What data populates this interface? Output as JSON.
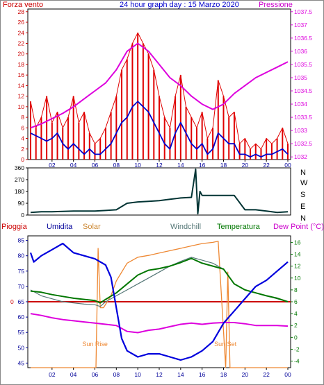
{
  "header": {
    "left_label": "Forza vento",
    "title": "24 hour graph day : 15 Marzo 2020",
    "right_label": "Pressione"
  },
  "lower_header": {
    "pioggia": "Pioggia",
    "umidita": "Umidita",
    "solar": "Solar",
    "windchill": "Windchill",
    "temperatura": "Temperatura",
    "dewpoint": "Dew Point (°C)"
  },
  "annotations": {
    "sunrise": "Sun Rise",
    "sunset": "Sun Set"
  },
  "colors": {
    "wind": "#e00000",
    "gust": "#e00000",
    "avgwind": "#0000cc",
    "pressure": "#dd00dd",
    "direction": "#003333",
    "humidity": "#0000dd",
    "solar": "#ee8833",
    "windchill": "#557777",
    "temperature": "#007700",
    "dewpoint": "#dd00dd",
    "rain": "#cc0000",
    "axis_blue": "#000099",
    "axis_red": "#cc0000",
    "axis_green": "#007700"
  },
  "chart_data": [
    {
      "type": "line",
      "title": "24 hour graph day : 15 Marzo 2020",
      "x_ticks": [
        "02",
        "04",
        "06",
        "08",
        "10",
        "12",
        "14",
        "16",
        "18",
        "20",
        "22",
        "00"
      ],
      "y_left": {
        "label": "Forza vento",
        "ticks": [
          "0",
          "2",
          "4",
          "6",
          "8",
          "10",
          "12",
          "14",
          "16",
          "18",
          "20",
          "22",
          "24",
          "26",
          "28"
        ],
        "ylim": [
          0,
          28.5
        ]
      },
      "y_right": {
        "label": "Pressione",
        "ticks": [
          "1032",
          "1032.5",
          "1033",
          "1033.5",
          "1034",
          "1034.5",
          "1035",
          "1035.5",
          "1036",
          "1036.5",
          "1037",
          "1037.5"
        ],
        "ylim": [
          1031.9,
          1037.6
        ]
      },
      "series": [
        {
          "name": "Forza vento",
          "axis": "left",
          "role": "gust",
          "x": [
            0,
            0.5,
            1,
            1.5,
            2,
            2.5,
            3,
            3.5,
            4,
            4.5,
            5,
            5.5,
            6,
            6.5,
            7,
            7.5,
            8,
            8.5,
            9,
            9.5,
            10,
            10.5,
            11,
            11.5,
            12,
            12.5,
            13,
            13.5,
            14,
            14.5,
            15,
            15.5,
            16,
            16.5,
            17,
            17.5,
            18,
            18.5,
            19,
            19.5,
            20,
            20.5,
            21,
            21.5,
            22,
            22.5,
            23,
            23.5,
            24
          ],
          "values": [
            11,
            6,
            8,
            12,
            7,
            9,
            6,
            8,
            12,
            7,
            9,
            5,
            3,
            4,
            6,
            9,
            12,
            17,
            19,
            22,
            24,
            22,
            20,
            17,
            12,
            8,
            6,
            12,
            16,
            10,
            8,
            6,
            9,
            4,
            6,
            15,
            12,
            8,
            9,
            3,
            4,
            2,
            3,
            2,
            4,
            3,
            4,
            6,
            3
          ]
        },
        {
          "name": "Forza vento (media)",
          "axis": "left",
          "role": "average",
          "x": [
            0,
            0.5,
            1,
            1.5,
            2,
            2.5,
            3,
            3.5,
            4,
            4.5,
            5,
            5.5,
            6,
            6.5,
            7,
            7.5,
            8,
            8.5,
            9,
            9.5,
            10,
            10.5,
            11,
            11.5,
            12,
            12.5,
            13,
            13.5,
            14,
            14.5,
            15,
            15.5,
            16,
            16.5,
            17,
            17.5,
            18,
            18.5,
            19,
            19.5,
            20,
            20.5,
            21,
            21.5,
            22,
            22.5,
            23,
            23.5,
            24
          ],
          "values": [
            5,
            4.5,
            4,
            3.5,
            4,
            5,
            3,
            2,
            3,
            2,
            1,
            2,
            1,
            1,
            2,
            3,
            5,
            7,
            8,
            10,
            11,
            10,
            9,
            7,
            5,
            3,
            2,
            5,
            7,
            5,
            3,
            2,
            3,
            1,
            2,
            5,
            4,
            3,
            3,
            1,
            1,
            0.5,
            1,
            0.5,
            1,
            1,
            1.5,
            2,
            1
          ]
        },
        {
          "name": "Pressione",
          "axis": "right",
          "x": [
            0,
            1,
            2,
            3,
            4,
            5,
            6,
            7,
            8,
            9,
            10,
            11,
            12,
            13,
            14,
            15,
            16,
            17,
            18,
            19,
            20,
            21,
            22,
            23,
            24
          ],
          "values": [
            1033.1,
            1033.25,
            1033.45,
            1033.65,
            1033.9,
            1034.2,
            1034.5,
            1034.8,
            1035.3,
            1036.0,
            1036.3,
            1036.0,
            1035.5,
            1035.0,
            1034.7,
            1034.3,
            1034.0,
            1033.8,
            1034.0,
            1034.4,
            1034.7,
            1035.0,
            1035.2,
            1035.4,
            1035.6
          ]
        }
      ]
    },
    {
      "type": "line",
      "y_labels_right": [
        "N",
        "W",
        "S",
        "E",
        "N"
      ],
      "y": {
        "ticks": [
          "0",
          "90",
          "180",
          "270",
          "360"
        ],
        "ylim": [
          0,
          360
        ]
      },
      "series": [
        {
          "name": "Direzione vento",
          "x": [
            0,
            1,
            2,
            3,
            4,
            5,
            6,
            7,
            8,
            9,
            10,
            11,
            12,
            13,
            14,
            15,
            15.4,
            15.6,
            15.8,
            16,
            17,
            18,
            18.5,
            19,
            20,
            21,
            22,
            23,
            24
          ],
          "values": [
            20,
            25,
            25,
            28,
            30,
            30,
            30,
            35,
            40,
            90,
            100,
            105,
            110,
            120,
            130,
            135,
            350,
            10,
            180,
            150,
            150,
            150,
            150,
            150,
            40,
            40,
            30,
            20,
            25
          ]
        }
      ]
    },
    {
      "type": "line",
      "x_ticks": [
        "02",
        "04",
        "06",
        "08",
        "10",
        "12",
        "14",
        "16",
        "18",
        "20",
        "22",
        "00"
      ],
      "y_left": {
        "label": "Umidita",
        "ticks": [
          "45",
          "50",
          "55",
          "60",
          "65",
          "70",
          "75",
          "80",
          "85"
        ],
        "ylim": [
          43.5,
          86.5
        ]
      },
      "y_right": {
        "label": "Temperatura",
        "ticks": [
          "-4",
          "-2",
          "0",
          "2",
          "4",
          "6",
          "8",
          "10",
          "12",
          "14",
          "16"
        ],
        "ylim": [
          -5.1,
          17.1
        ]
      },
      "series": [
        {
          "name": "Umidita",
          "axis": "left",
          "x": [
            0,
            0.3,
            1,
            2,
            3,
            4,
            5,
            6,
            7,
            7.5,
            8,
            8.5,
            9,
            10,
            11,
            12,
            13,
            14,
            15,
            16,
            17,
            18,
            19,
            20,
            21,
            22,
            23,
            24
          ],
          "values": [
            81,
            78,
            80,
            82,
            84,
            81,
            80,
            79,
            77,
            73,
            63,
            53,
            49,
            47,
            48,
            48,
            47,
            46,
            47,
            49,
            52,
            58,
            62,
            66,
            70,
            72,
            75,
            78
          ]
        },
        {
          "name": "Pioggia",
          "axis": "left",
          "role": "rain",
          "values": [
            65
          ]
        },
        {
          "name": "Solar",
          "axis": "right",
          "x": [
            0,
            6.1,
            6.3,
            6.5,
            6.8,
            7.5,
            8,
            9,
            10,
            11,
            12,
            13,
            14,
            15,
            16,
            17,
            17.5,
            18.2,
            18.4,
            18.6,
            24
          ],
          "values": [
            -5.1,
            -5.1,
            15,
            5,
            5,
            7,
            9.5,
            12.5,
            13.5,
            13.8,
            14.2,
            14.6,
            15.0,
            15.4,
            15.8,
            16.0,
            16.2,
            -5.1,
            11,
            -5.1,
            -5.1
          ]
        },
        {
          "name": "Windchill",
          "axis": "right",
          "x": [
            0,
            1,
            2,
            3,
            4,
            5,
            6,
            6.5,
            7,
            8,
            9,
            10,
            11,
            12,
            13,
            14,
            15,
            16,
            17,
            18,
            19,
            20,
            21,
            22,
            23,
            24
          ],
          "values": [
            8,
            7,
            6.5,
            6,
            5.8,
            5.6,
            5.5,
            5.2,
            6,
            7,
            8,
            9,
            10,
            11,
            12,
            12.8,
            13.5,
            13,
            12.5,
            11.5,
            9,
            8,
            7.5,
            7,
            6.5,
            6
          ]
        },
        {
          "name": "Temperatura",
          "axis": "right",
          "x": [
            0,
            1,
            2,
            3,
            4,
            5,
            6,
            6.5,
            7,
            8,
            9,
            10,
            11,
            12,
            13,
            14,
            15,
            16,
            17,
            18,
            19,
            20,
            21,
            22,
            23,
            24
          ],
          "values": [
            7.8,
            7.6,
            7.2,
            6.9,
            6.6,
            6.4,
            6.2,
            5.8,
            6.4,
            7.5,
            9,
            10.5,
            11.3,
            11.6,
            12.0,
            12.6,
            13.3,
            12.5,
            12.0,
            11.5,
            9,
            8,
            7.5,
            7.0,
            6.6,
            6.0
          ]
        },
        {
          "name": "Dew Point",
          "axis": "right",
          "x": [
            0,
            1,
            2,
            3,
            4,
            5,
            6,
            7,
            8,
            9,
            10,
            11,
            12,
            13,
            14,
            15,
            16,
            17,
            18,
            19,
            20,
            21,
            22,
            23,
            24
          ],
          "values": [
            4,
            3.7,
            3.3,
            3.0,
            2.8,
            2.6,
            2.4,
            2.2,
            2.0,
            1.0,
            0.8,
            1.2,
            1.4,
            1.8,
            2.2,
            2.4,
            2.2,
            2.4,
            2.5,
            2.5,
            2.3,
            2.0,
            2.0,
            2.0,
            1.9
          ]
        }
      ]
    }
  ]
}
